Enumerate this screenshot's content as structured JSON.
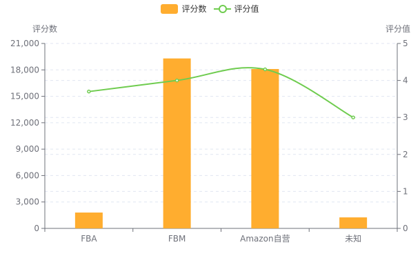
{
  "colors": {
    "bar": "#ffad2f",
    "line": "#6fcc4f",
    "axis": "#6e7079",
    "grid": "#e0e6f1"
  },
  "legend": [
    {
      "label": "评分数",
      "kind": "bar"
    },
    {
      "label": "评分值",
      "kind": "line"
    }
  ],
  "chart_data": {
    "type": "bar",
    "categories": [
      "FBA",
      "FBM",
      "Amazon自营",
      "未知"
    ],
    "series": [
      {
        "name": "评分数",
        "type": "bar",
        "axis": "left",
        "values": [
          1800,
          19300,
          18100,
          1250
        ]
      },
      {
        "name": "评分值",
        "type": "line",
        "axis": "right",
        "smooth": true,
        "values": [
          3.7,
          4.0,
          4.3,
          3.0
        ]
      }
    ],
    "yLeft": {
      "label": "评分数",
      "min": 0,
      "max": 21000,
      "ticks": [
        0,
        3000,
        6000,
        9000,
        12000,
        15000,
        18000,
        21000
      ],
      "tick_labels": [
        "0",
        "3,000",
        "6,000",
        "9,000",
        "12,000",
        "15,000",
        "18,000",
        "21,000"
      ]
    },
    "yRight": {
      "label": "评分值",
      "min": 0,
      "max": 5,
      "ticks": [
        0,
        1,
        2,
        3,
        4,
        5
      ],
      "tick_labels": [
        "0",
        "1",
        "2",
        "3",
        "4",
        "5"
      ]
    },
    "grid": true
  }
}
